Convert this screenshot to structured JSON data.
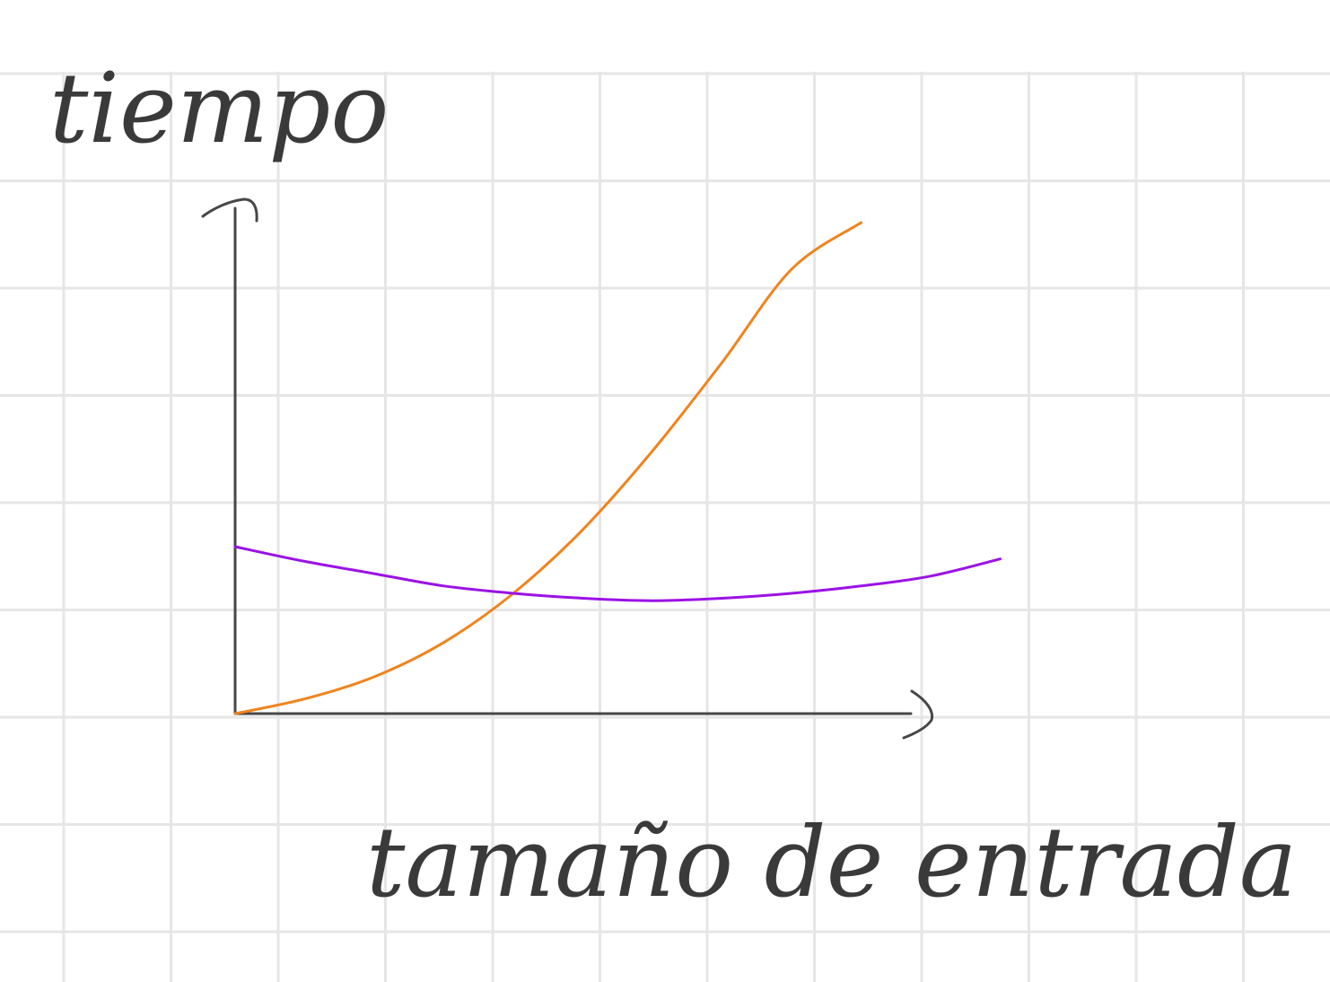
{
  "chart_data": {
    "type": "line",
    "xlabel": "tamaño de entrada",
    "ylabel": "tiempo",
    "xlim": [
      0,
      1
    ],
    "ylim": [
      0,
      1
    ],
    "grid": true,
    "series": [
      {
        "color": "#f0831e",
        "x": [
          0.0,
          0.1,
          0.2,
          0.3,
          0.4,
          0.5,
          0.6,
          0.7,
          0.8,
          0.9
        ],
        "y": [
          0.0,
          0.03,
          0.075,
          0.145,
          0.245,
          0.375,
          0.535,
          0.715,
          0.905,
          1.0
        ]
      },
      {
        "color": "#9b12e6",
        "x": [
          0.0,
          0.1,
          0.2,
          0.3,
          0.4,
          0.5,
          0.6,
          0.7,
          0.8,
          0.9,
          1.0,
          1.1
        ],
        "y": [
          0.34,
          0.31,
          0.285,
          0.26,
          0.245,
          0.235,
          0.23,
          0.235,
          0.245,
          0.26,
          0.28,
          0.315
        ]
      }
    ]
  },
  "colors": {
    "grid": "#e6e6e6",
    "axis": "#474747"
  }
}
